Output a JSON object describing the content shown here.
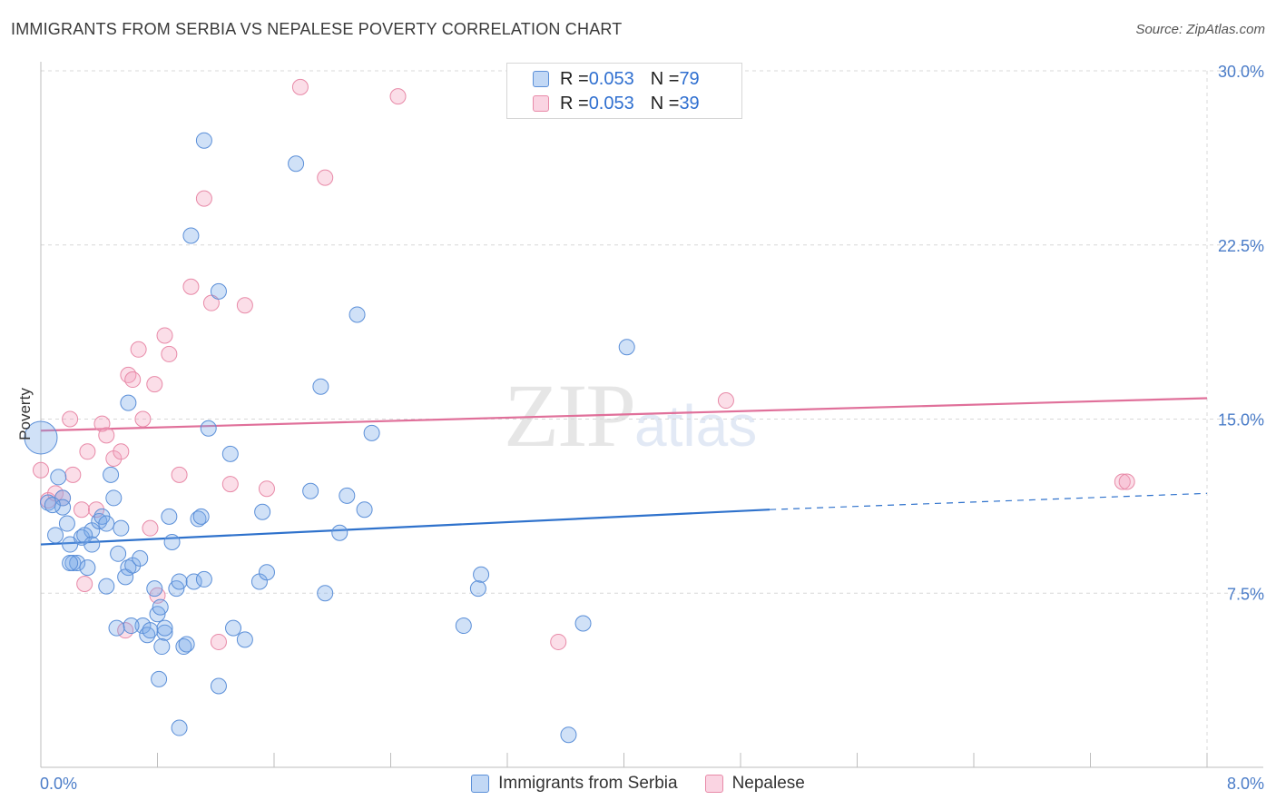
{
  "title": "IMMIGRANTS FROM SERBIA VS NEPALESE POVERTY CORRELATION CHART",
  "source": "Source: ZipAtlas.com",
  "watermark": {
    "zip": "ZIP",
    "atlas": "atlas"
  },
  "legend": {
    "rows": [
      {
        "r_label": "R = ",
        "r_value": "0.053",
        "n_label": "N = ",
        "n_value": "79"
      },
      {
        "r_label": "R = ",
        "r_value": "0.053",
        "n_label": "N = ",
        "n_value": "39"
      }
    ]
  },
  "colors": {
    "serbia_fill": "rgba(120,168,232,0.35)",
    "serbia_stroke": "#5b8fd8",
    "serbia_line": "#2f72cc",
    "nepal_fill": "rgba(244,160,190,0.35)",
    "nepal_stroke": "#e88aa8",
    "nepal_line": "#e0709a",
    "grid": "#d8d8d8"
  },
  "chart_data": {
    "type": "scatter",
    "title": "IMMIGRANTS FROM SERBIA VS NEPALESE POVERTY CORRELATION CHART",
    "xlabel": "",
    "ylabel": "Poverty",
    "xlim": [
      0.0,
      8.0
    ],
    "ylim": [
      0.0,
      30.0
    ],
    "x_tick_labels": [
      "0.0%",
      "8.0%"
    ],
    "y_ticks": [
      7.5,
      15.0,
      22.5,
      30.0
    ],
    "y_tick_labels": [
      "7.5%",
      "15.0%",
      "22.5%",
      "30.0%"
    ],
    "grid": true,
    "series": [
      {
        "name": "Immigrants from Serbia",
        "R": 0.053,
        "N": 79,
        "trend": {
          "x": [
            0.0,
            5.0,
            8.0
          ],
          "y": [
            9.6,
            11.1,
            11.8
          ],
          "dashed_from_x": 5.0
        },
        "points": [
          [
            0.0,
            14.2,
            1
          ],
          [
            0.05,
            11.4,
            0
          ],
          [
            0.12,
            12.5,
            0
          ],
          [
            0.15,
            11.6,
            0
          ],
          [
            0.15,
            11.2,
            0
          ],
          [
            0.08,
            11.3,
            0
          ],
          [
            0.18,
            10.5,
            0
          ],
          [
            0.1,
            10.0,
            0
          ],
          [
            0.2,
            9.6,
            0
          ],
          [
            0.28,
            9.9,
            0
          ],
          [
            0.35,
            10.2,
            0
          ],
          [
            0.4,
            10.6,
            0
          ],
          [
            0.42,
            10.8,
            0
          ],
          [
            0.3,
            10.0,
            0
          ],
          [
            0.35,
            9.6,
            0
          ],
          [
            0.22,
            8.8,
            0
          ],
          [
            0.25,
            8.8,
            0
          ],
          [
            0.32,
            8.6,
            0
          ],
          [
            0.45,
            7.8,
            0
          ],
          [
            0.5,
            11.6,
            0
          ],
          [
            0.48,
            12.6,
            0
          ],
          [
            0.55,
            10.3,
            0
          ],
          [
            0.53,
            9.2,
            0
          ],
          [
            0.6,
            8.6,
            0
          ],
          [
            0.58,
            8.2,
            0
          ],
          [
            0.63,
            8.7,
            0
          ],
          [
            0.68,
            9.0,
            0
          ],
          [
            0.6,
            15.7,
            0
          ],
          [
            0.7,
            6.1,
            0
          ],
          [
            0.73,
            5.7,
            0
          ],
          [
            0.75,
            5.9,
            0
          ],
          [
            0.8,
            6.6,
            0
          ],
          [
            0.78,
            7.7,
            0
          ],
          [
            0.82,
            6.9,
            0
          ],
          [
            0.85,
            5.8,
            0
          ],
          [
            0.83,
            5.2,
            0
          ],
          [
            0.88,
            10.8,
            0
          ],
          [
            0.9,
            9.7,
            0
          ],
          [
            0.93,
            7.7,
            0
          ],
          [
            0.95,
            8.0,
            0
          ],
          [
            0.98,
            5.2,
            0
          ],
          [
            1.0,
            5.3,
            0
          ],
          [
            1.05,
            8.0,
            0
          ],
          [
            1.08,
            10.7,
            0
          ],
          [
            1.1,
            10.8,
            0
          ],
          [
            1.12,
            8.1,
            0
          ],
          [
            1.15,
            14.6,
            0
          ],
          [
            1.12,
            27.0,
            0
          ],
          [
            1.03,
            22.9,
            0
          ],
          [
            1.22,
            20.5,
            0
          ],
          [
            1.3,
            13.5,
            0
          ],
          [
            1.32,
            6.0,
            0
          ],
          [
            1.4,
            5.5,
            0
          ],
          [
            1.5,
            8.0,
            0
          ],
          [
            1.52,
            11.0,
            0
          ],
          [
            1.55,
            8.4,
            0
          ],
          [
            0.62,
            6.1,
            0
          ],
          [
            0.52,
            6.0,
            0
          ],
          [
            0.81,
            3.8,
            0
          ],
          [
            0.95,
            1.7,
            0
          ],
          [
            1.22,
            3.5,
            0
          ],
          [
            1.75,
            26.0,
            0
          ],
          [
            1.85,
            11.9,
            0
          ],
          [
            1.92,
            16.4,
            0
          ],
          [
            1.95,
            7.5,
            0
          ],
          [
            2.05,
            10.1,
            0
          ],
          [
            2.1,
            11.7,
            0
          ],
          [
            2.17,
            19.5,
            0
          ],
          [
            2.22,
            11.1,
            0
          ],
          [
            2.27,
            14.4,
            0
          ],
          [
            2.9,
            6.1,
            0
          ],
          [
            3.0,
            7.7,
            0
          ],
          [
            3.02,
            8.3,
            0
          ],
          [
            3.62,
            1.4,
            0
          ],
          [
            3.72,
            6.2,
            0
          ],
          [
            4.02,
            18.1,
            0
          ],
          [
            0.45,
            10.5,
            0
          ],
          [
            0.2,
            8.8,
            0
          ],
          [
            0.85,
            6.0,
            0
          ]
        ]
      },
      {
        "name": "Nepalese",
        "R": 0.053,
        "N": 39,
        "trend": {
          "x": [
            0.0,
            8.0
          ],
          "y": [
            14.5,
            15.9
          ]
        },
        "points": [
          [
            0.0,
            12.8,
            0
          ],
          [
            0.05,
            11.5,
            0
          ],
          [
            0.1,
            11.8,
            0
          ],
          [
            0.15,
            11.6,
            0
          ],
          [
            0.2,
            15.0,
            0
          ],
          [
            0.22,
            12.6,
            0
          ],
          [
            0.28,
            11.1,
            0
          ],
          [
            0.32,
            13.6,
            0
          ],
          [
            0.3,
            7.9,
            0
          ],
          [
            0.38,
            11.1,
            0
          ],
          [
            0.42,
            14.8,
            0
          ],
          [
            0.45,
            14.3,
            0
          ],
          [
            0.5,
            13.3,
            0
          ],
          [
            0.55,
            13.6,
            0
          ],
          [
            0.58,
            5.9,
            0
          ],
          [
            0.6,
            16.9,
            0
          ],
          [
            0.63,
            16.7,
            0
          ],
          [
            0.67,
            18.0,
            0
          ],
          [
            0.7,
            15.0,
            0
          ],
          [
            0.75,
            10.3,
            0
          ],
          [
            0.78,
            16.5,
            0
          ],
          [
            0.8,
            7.4,
            0
          ],
          [
            0.85,
            18.6,
            0
          ],
          [
            0.88,
            17.8,
            0
          ],
          [
            0.95,
            12.6,
            0
          ],
          [
            1.03,
            20.7,
            0
          ],
          [
            1.12,
            24.5,
            0
          ],
          [
            1.17,
            20.0,
            0
          ],
          [
            1.22,
            5.4,
            0
          ],
          [
            1.3,
            12.2,
            0
          ],
          [
            1.4,
            19.9,
            0
          ],
          [
            1.55,
            12.0,
            0
          ],
          [
            1.78,
            29.3,
            0
          ],
          [
            1.95,
            25.4,
            0
          ],
          [
            2.45,
            28.9,
            0
          ],
          [
            3.55,
            5.4,
            0
          ],
          [
            4.7,
            15.8,
            0
          ],
          [
            7.42,
            12.3,
            0
          ],
          [
            7.45,
            12.3,
            0
          ]
        ]
      }
    ]
  },
  "bottom_legend": {
    "items": [
      {
        "label": "Immigrants from Serbia"
      },
      {
        "label": "Nepalese"
      }
    ]
  }
}
